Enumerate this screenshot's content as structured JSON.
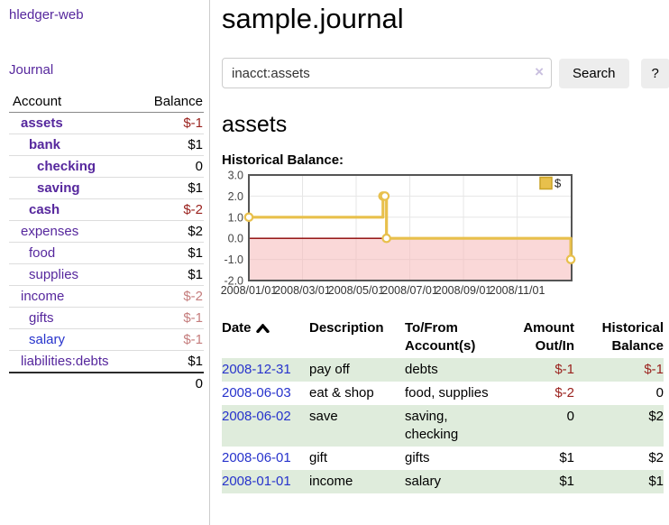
{
  "colors": {
    "link_visited": "#56279d",
    "link_unvisited": "#2733cc",
    "negative": "#9a221e",
    "negative_muted": "#c57d7d",
    "row_green": "#dfecdc",
    "chart_gold": "#e8c04c",
    "chart_gold_border": "#c9a227",
    "chart_negative_region": "#f5b8b8",
    "chart_zero_line": "#8b0000",
    "chart_border": "#555555",
    "chart_grid": "#e6e6e6"
  },
  "sidebar": {
    "brand": "hledger-web",
    "nav": [
      {
        "label": "Journal"
      }
    ],
    "accounts_table": {
      "headers": {
        "account": "Account",
        "balance": "Balance"
      },
      "rows": [
        {
          "name": "assets",
          "indent": 1,
          "bold": true,
          "link_style": "visited",
          "balance": "$-1",
          "balance_style": "neg"
        },
        {
          "name": "bank",
          "indent": 2,
          "bold": true,
          "link_style": "visited",
          "balance": "$1",
          "balance_style": "pos"
        },
        {
          "name": "checking",
          "indent": 3,
          "bold": true,
          "link_style": "visited",
          "balance": "0",
          "balance_style": "pos"
        },
        {
          "name": "saving",
          "indent": 3,
          "bold": true,
          "link_style": "visited",
          "balance": "$1",
          "balance_style": "pos"
        },
        {
          "name": "cash",
          "indent": 2,
          "bold": true,
          "link_style": "visited",
          "balance": "$-2",
          "balance_style": "neg"
        },
        {
          "name": "expenses",
          "indent": 1,
          "bold": false,
          "link_style": "visited",
          "balance": "$2",
          "balance_style": "pos"
        },
        {
          "name": "food",
          "indent": 2,
          "bold": false,
          "link_style": "visited",
          "balance": "$1",
          "balance_style": "pos"
        },
        {
          "name": "supplies",
          "indent": 2,
          "bold": false,
          "link_style": "visited",
          "balance": "$1",
          "balance_style": "pos"
        },
        {
          "name": "income",
          "indent": 1,
          "bold": false,
          "link_style": "visited",
          "balance": "$-2",
          "balance_style": "neg-muted"
        },
        {
          "name": "gifts",
          "indent": 2,
          "bold": false,
          "link_style": "visited",
          "balance": "$-1",
          "balance_style": "neg-muted"
        },
        {
          "name": "salary",
          "indent": 2,
          "bold": false,
          "link_style": "unvisited",
          "balance": "$-1",
          "balance_style": "neg-muted"
        },
        {
          "name": "liabilities:debts",
          "indent": 1,
          "bold": false,
          "link_style": "visited",
          "balance": "$1",
          "balance_style": "pos"
        }
      ],
      "total": "0"
    }
  },
  "header": {
    "title": "sample.journal"
  },
  "search": {
    "value": "inacct:assets",
    "clear_icon": "×",
    "button": "Search",
    "help_button": "?"
  },
  "account_page": {
    "heading": "assets",
    "chart_label": "Historical Balance:"
  },
  "chart_data": {
    "type": "line",
    "step": true,
    "title": "Historical Balance",
    "legend": {
      "label": "$",
      "position": "top-right"
    },
    "ylim": [
      -2,
      3
    ],
    "xlim_months": [
      0,
      12.03
    ],
    "y_ticks": [
      {
        "v": 3,
        "label": "3.0"
      },
      {
        "v": 2,
        "label": "2.0"
      },
      {
        "v": 1,
        "label": "1.0"
      },
      {
        "v": 0,
        "label": "0.0"
      },
      {
        "v": -1,
        "label": "-1.0"
      },
      {
        "v": -2,
        "label": "-2.0"
      }
    ],
    "x_ticks": [
      {
        "m": 0,
        "label": "2008/01/01"
      },
      {
        "m": 2,
        "label": "2008/03/01"
      },
      {
        "m": 4,
        "label": "2008/05/01"
      },
      {
        "m": 6,
        "label": "2008/07/01"
      },
      {
        "m": 8,
        "label": "2008/09/01"
      },
      {
        "m": 10,
        "label": "2008/11/01"
      }
    ],
    "series": [
      {
        "name": "$",
        "points": [
          {
            "date": "2008-01-01",
            "m": 0,
            "v": 1
          },
          {
            "date": "2008-06-01",
            "m": 5.0,
            "v": 2
          },
          {
            "date": "2008-06-02",
            "m": 5.07,
            "v": 2
          },
          {
            "date": "2008-06-03",
            "m": 5.13,
            "v": 0
          },
          {
            "date": "2008-12-31",
            "m": 12.0,
            "v": -1
          }
        ]
      }
    ],
    "negative_region": [
      0,
      -2
    ],
    "grid": true
  },
  "register_table": {
    "headers": {
      "date": "Date",
      "description": "Description",
      "accounts": "To/From Account(s)",
      "amount": "Amount Out/In",
      "balance": "Historical Balance"
    },
    "rows": [
      {
        "date": "2008-12-31",
        "description": "pay off",
        "accounts": [
          "debts"
        ],
        "amount": "$-1",
        "amount_style": "neg",
        "balance": "$-1",
        "balance_style": "neg"
      },
      {
        "date": "2008-06-03",
        "description": "eat & shop",
        "accounts": [
          "food,",
          "supplies"
        ],
        "amount": "$-2",
        "amount_style": "neg",
        "balance": "0",
        "balance_style": "pos"
      },
      {
        "date": "2008-06-02",
        "description": "save",
        "accounts": [
          "saving,",
          "checking"
        ],
        "amount": "0",
        "amount_style": "pos",
        "balance": "$2",
        "balance_style": "pos"
      },
      {
        "date": "2008-06-01",
        "description": "gift",
        "accounts": [
          "gifts"
        ],
        "amount": "$1",
        "amount_style": "pos",
        "balance": "$2",
        "balance_style": "pos"
      },
      {
        "date": "2008-01-01",
        "description": "income",
        "accounts": [
          "salary"
        ],
        "amount": "$1",
        "amount_style": "pos",
        "balance": "$1",
        "balance_style": "pos"
      }
    ]
  }
}
